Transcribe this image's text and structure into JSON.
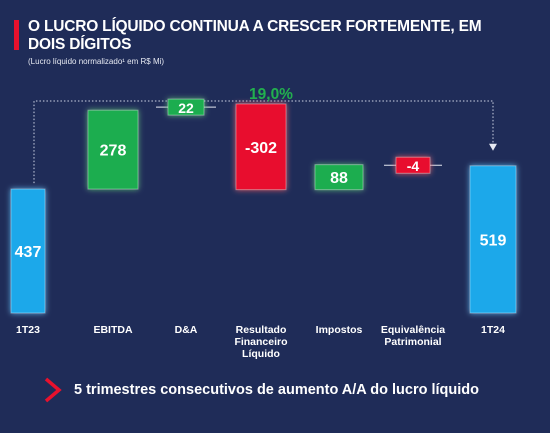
{
  "header": {
    "title": "O LUCRO LÍQUIDO CONTINUA A CRESCER FORTEMENTE, EM DOIS DÍGITOS",
    "subtitle": "(Lucro líquido normalizado¹ em R$ Mi)"
  },
  "footer": {
    "text": "5 trimestres consecutivos de aumento A/A do lucro líquido",
    "icon": "chevron-right-icon"
  },
  "colors": {
    "background": "#1f2c58",
    "total": "#1aa8ea",
    "increase": "#1cad50",
    "decrease": "#e8112d",
    "growth_label": "#22b04e",
    "accent": "#e8112d"
  },
  "chart_data": {
    "type": "bar",
    "subtype": "waterfall",
    "categories": [
      "1T23",
      "EBITDA",
      "D&A",
      "Resultado Financeiro Líquido",
      "Impostos",
      "Equivalência Patrimonial",
      "1T24"
    ],
    "category_lines": [
      [
        "1T23"
      ],
      [
        "EBITDA"
      ],
      [
        "D&A"
      ],
      [
        "Resultado",
        "Financeiro",
        "Líquido"
      ],
      [
        "Impostos"
      ],
      [
        "Equivalência",
        "Patrimonial"
      ],
      [
        "1T24"
      ]
    ],
    "values": [
      437,
      278,
      22,
      -302,
      88,
      -4,
      519
    ],
    "value_labels": [
      "437",
      "278",
      "22",
      "-302",
      "88",
      "-4",
      "519"
    ],
    "kinds": [
      "total",
      "increase",
      "increase",
      "decrease",
      "increase",
      "decrease",
      "total"
    ],
    "annotation": "19,0%",
    "ylim": [
      0,
      800
    ]
  }
}
